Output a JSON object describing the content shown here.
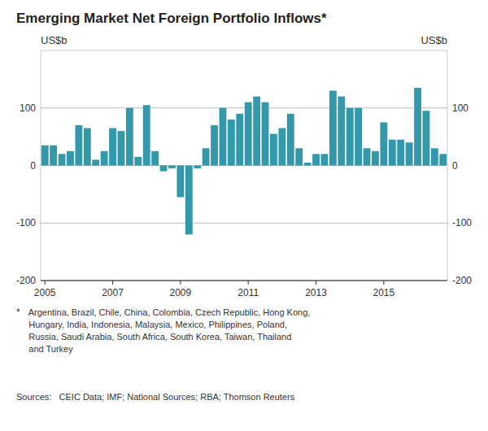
{
  "chart_data": {
    "type": "bar",
    "title": "Emerging Market Net Foreign Portfolio Inflows*",
    "y_label": "US$b",
    "y2_label": "US$b",
    "annotations": [
      "*",
      "     Argentina, Brazil, Chile, China, Colombia, Czech Republic, Hong Kong,\n     Hungary, India, Indonesia, Malaysia, Mexico, Philippines, Poland,\n     Russia, Saudi Arabia, South Africa, South Korea, Taiwan, Thailand\n     and Turkey",
      "Sources:   CEIC Data; IMF; National Sources; RBA; Thomson Reuters"
    ],
    "categories": [
      "2005",
      null,
      null,
      null,
      null,
      null,
      null,
      null,
      "2007",
      null,
      null,
      null,
      null,
      null,
      null,
      null,
      "2009",
      null,
      null,
      null,
      null,
      null,
      null,
      null,
      "2011",
      null,
      null,
      null,
      null,
      null,
      null,
      null,
      "2013",
      null,
      null,
      null,
      null,
      null,
      null,
      null,
      "2015",
      null,
      null,
      null,
      null,
      null,
      null,
      null
    ],
    "values": [
      35,
      35,
      20,
      25,
      70,
      65,
      10,
      25,
      65,
      60,
      100,
      15,
      105,
      25,
      -10,
      -5,
      -55,
      -120,
      -5,
      30,
      70,
      100,
      80,
      90,
      110,
      120,
      110,
      55,
      65,
      90,
      30,
      5,
      20,
      20,
      130,
      120,
      100,
      100,
      30,
      25,
      75,
      45,
      45,
      40,
      135,
      95,
      30,
      20
    ],
    "color": "#3399aa",
    "ylim": [
      -200,
      200
    ],
    "yticks": [
      -200,
      -100,
      0,
      100
    ],
    "y2lim": [
      -200,
      200
    ],
    "y2ticks": [
      -200,
      -100,
      0,
      100
    ],
    "grid": true
  }
}
